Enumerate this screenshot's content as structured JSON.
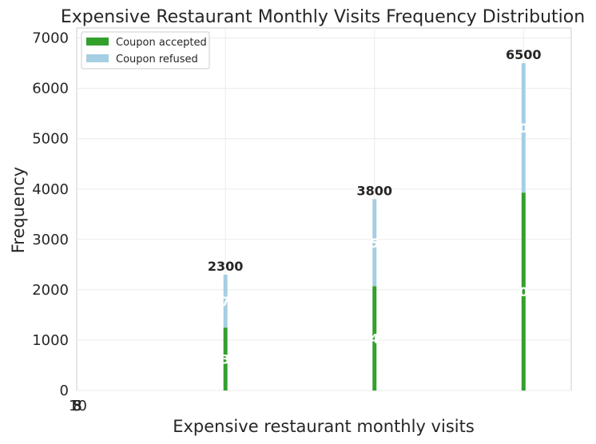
{
  "chart_data": {
    "type": "bar",
    "stacked": true,
    "title": "Expensive Restaurant Monthly Visits Frequency Distribution",
    "xlabel": "Expensive restaurant monthly visits",
    "ylabel": "Frequency",
    "ylim": [
      0,
      7200
    ],
    "y_ticks": [
      0,
      1000,
      2000,
      3000,
      4000,
      5000,
      6000,
      7000
    ],
    "x_tick_labels": [
      "3",
      "5",
      "8",
      "10"
    ],
    "x_tick_values": [
      3,
      5,
      8,
      10
    ],
    "xlim": [
      2,
      3320
    ],
    "grid": true,
    "legend_position": "top-left",
    "bar_x": [
      1000,
      2000,
      3000
    ],
    "series": [
      {
        "name": "Coupon accepted",
        "color": "#33a02c",
        "values": [
          1250,
          2070,
          3930
        ],
        "labels": [
          "3",
          "4",
          "0"
        ]
      },
      {
        "name": "Coupon refused",
        "color": "#a6cee3",
        "values": [
          1050,
          1730,
          2570
        ],
        "labels": [
          "7",
          "5",
          "0"
        ]
      }
    ],
    "totals": [
      2300,
      3800,
      6500
    ]
  }
}
